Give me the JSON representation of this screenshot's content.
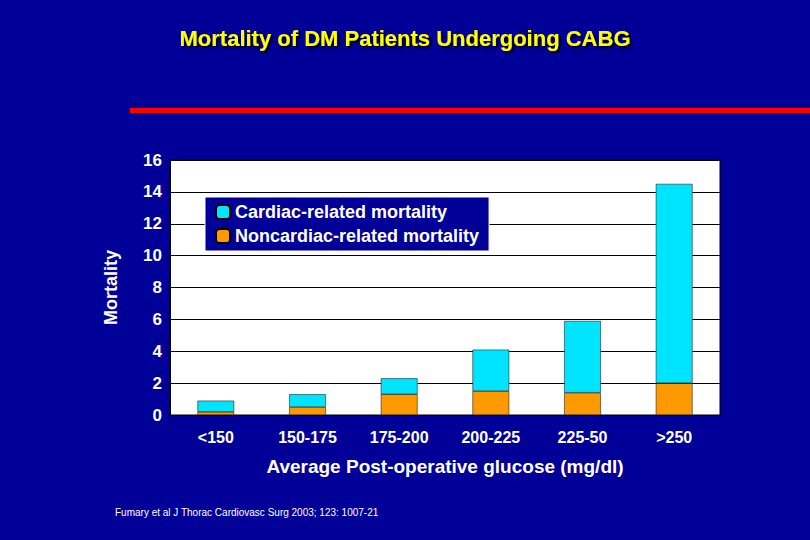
{
  "chart_data": {
    "type": "bar",
    "title": "Mortality of DM Patients Undergoing CABG",
    "x_label": "Average Post-operative glucose (mg/dl)",
    "y_label": "Mortality",
    "source": "Fumary et al J Thorac Cardiovasc Surg 2003; 123: 1007-21",
    "categories": [
      "<150",
      "150-175",
      "175-200",
      "200-225",
      "225-50",
      ">250"
    ],
    "series": [
      {
        "name": "Cardiac-related mortality",
        "color": "#00e5ff",
        "values": [
          0.7,
          0.8,
          1.0,
          2.6,
          4.5,
          12.5
        ]
      },
      {
        "name": "Noncardiac-related mortality",
        "color": "#ff9900",
        "values": [
          0.2,
          0.5,
          1.3,
          1.5,
          1.4,
          2.0
        ]
      }
    ],
    "stacked": true,
    "ylim": [
      0,
      16
    ],
    "yticks": [
      0,
      2,
      4,
      6,
      8,
      10,
      12,
      14,
      16
    ],
    "grid": true,
    "legend": "upper left"
  }
}
